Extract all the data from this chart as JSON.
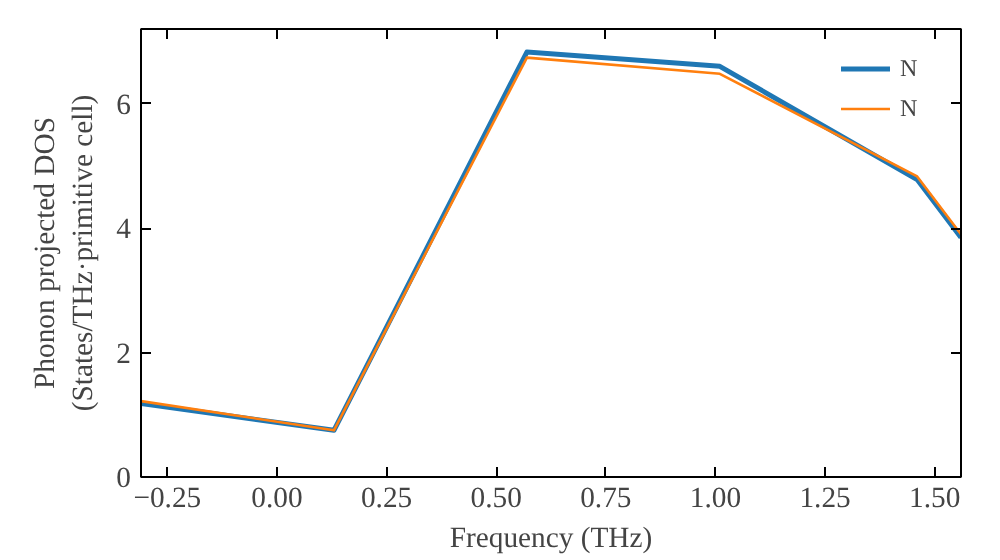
{
  "chart_data": {
    "type": "line",
    "xlabel": "Frequency (THz)",
    "ylabel": "Phonon projected DOS\n(States/THz·primitive cell)",
    "xlim": [
      -0.31,
      1.56
    ],
    "ylim": [
      0,
      7.2
    ],
    "xticks": [
      {
        "value": -0.25,
        "label": "−0.25"
      },
      {
        "value": 0,
        "label": "0.00"
      },
      {
        "value": 0.25,
        "label": "0.25"
      },
      {
        "value": 0.5,
        "label": "0.50"
      },
      {
        "value": 0.75,
        "label": "0.75"
      },
      {
        "value": 1.0,
        "label": "1.00"
      },
      {
        "value": 1.25,
        "label": "1.25"
      },
      {
        "value": 1.5,
        "label": "1.50"
      }
    ],
    "yticks": [
      0,
      2,
      4,
      6
    ],
    "grid": false,
    "legend": "top right",
    "x": [
      -0.31,
      0.13,
      0.57,
      1.01,
      1.46,
      1.56
    ],
    "series": [
      {
        "name": "N",
        "color": "#1f77b4",
        "values": [
          1.18,
          0.75,
          6.83,
          6.6,
          4.78,
          3.85
        ]
      },
      {
        "name": "N",
        "color": "#ff7f0e",
        "values": [
          1.22,
          0.75,
          6.74,
          6.48,
          4.83,
          3.9
        ]
      }
    ]
  }
}
